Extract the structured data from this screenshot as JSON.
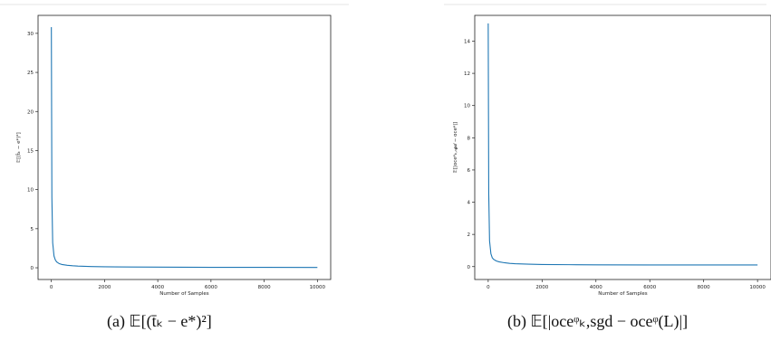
{
  "chart_data": [
    {
      "type": "line",
      "ylabel": "𝔼[(t̄ₖ − e*)²]",
      "xlabel": "Number of Samples",
      "xlim": [
        -500,
        10500
      ],
      "ylim": [
        -1.5,
        32.3
      ],
      "xticks": [
        0,
        2000,
        4000,
        6000,
        8000,
        10000
      ],
      "yticks": [
        0,
        5,
        10,
        15,
        20,
        25,
        30
      ],
      "series_color": "#1f77b4",
      "x": [
        0,
        20,
        50,
        100,
        150,
        200,
        300,
        400,
        600,
        800,
        1000,
        1500,
        2000,
        3000,
        4000,
        6000,
        8000,
        10000
      ],
      "y": [
        30.8,
        9.0,
        3.2,
        1.5,
        1.0,
        0.75,
        0.52,
        0.42,
        0.32,
        0.26,
        0.22,
        0.16,
        0.13,
        0.1,
        0.08,
        0.06,
        0.05,
        0.04
      ],
      "caption_label": "(a)",
      "caption_expr": "𝔼[(t̄ₖ − e*)²]"
    },
    {
      "type": "line",
      "ylabel": "𝔼[|oceᵠₖ,ₛ𝓰𝒹 − oceᵠ|]",
      "xlabel": "Number of Samples",
      "xlim": [
        -500,
        10500
      ],
      "ylim": [
        -0.8,
        15.6
      ],
      "xticks": [
        0,
        2000,
        4000,
        6000,
        8000,
        10000
      ],
      "yticks": [
        0,
        2,
        4,
        6,
        8,
        10,
        12,
        14
      ],
      "series_color": "#1f77b4",
      "x": [
        0,
        20,
        50,
        100,
        150,
        200,
        300,
        400,
        600,
        800,
        1000,
        1500,
        2000,
        3000,
        4000,
        6000,
        8000,
        10000
      ],
      "y": [
        15.1,
        4.5,
        1.6,
        0.8,
        0.55,
        0.45,
        0.35,
        0.3,
        0.24,
        0.2,
        0.18,
        0.15,
        0.13,
        0.12,
        0.11,
        0.1,
        0.1,
        0.1
      ],
      "caption_label": "(b)",
      "caption_expr": "𝔼[|oceᵠₖ,sgd − oceᵠ(L)|]"
    }
  ]
}
